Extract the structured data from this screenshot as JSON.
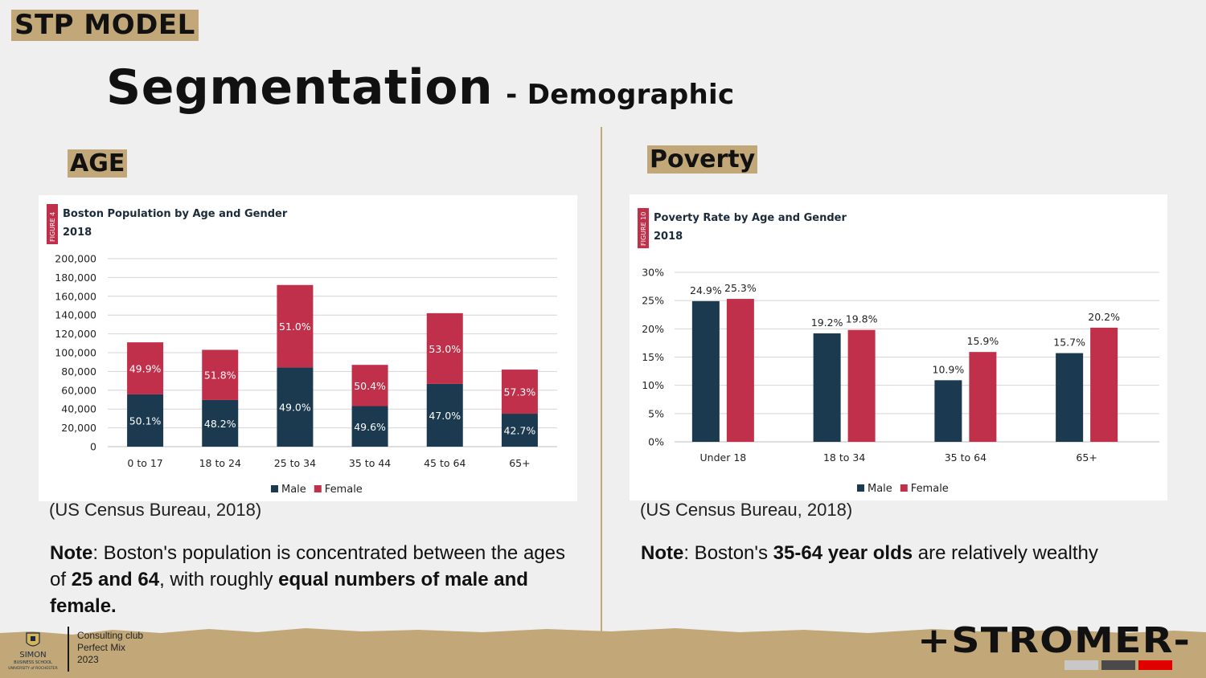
{
  "brand_tag": "STP MODEL",
  "title": {
    "main": "Segmentation",
    "sub": "- Demographic"
  },
  "sections": {
    "age_tag": "AGE",
    "poverty_tag": "Poverty"
  },
  "colors": {
    "male": "#1b3a4f",
    "female": "#c1304a",
    "tag_bg": "#c2a878",
    "grid": "#d4d4d4"
  },
  "chart_data": [
    {
      "type": "bar",
      "stacked": true,
      "figure_label": "FIGURE 4",
      "title": "Boston Population by Age and Gender",
      "subtitle": "2018",
      "categories": [
        "0 to 17",
        "18 to 24",
        "25 to 34",
        "35 to 44",
        "45 to 64",
        "65+"
      ],
      "totals": [
        111000,
        103000,
        172000,
        87000,
        142000,
        82000
      ],
      "series": [
        {
          "name": "Male",
          "labels": [
            "50.1%",
            "48.2%",
            "49.0%",
            "49.6%",
            "47.0%",
            "42.7%"
          ],
          "share": [
            50.1,
            48.2,
            49.0,
            49.6,
            47.0,
            42.7
          ]
        },
        {
          "name": "Female",
          "labels": [
            "49.9%",
            "51.8%",
            "51.0%",
            "50.4%",
            "53.0%",
            "57.3%"
          ],
          "share": [
            49.9,
            51.8,
            51.0,
            50.4,
            53.0,
            57.3
          ]
        }
      ],
      "ylim": [
        0,
        200000
      ],
      "yticks": [
        0,
        20000,
        40000,
        60000,
        80000,
        100000,
        120000,
        140000,
        160000,
        180000,
        200000
      ],
      "ytick_labels": [
        "0",
        "20,000",
        "40,000",
        "60,000",
        "80,000",
        "100,000",
        "120,000",
        "140,000",
        "160,000",
        "180,000",
        "200,000"
      ],
      "grid": true,
      "legend": "bottom"
    },
    {
      "type": "bar",
      "stacked": false,
      "figure_label": "FIGURE 10",
      "title": "Poverty Rate by Age and Gender",
      "subtitle": "2018",
      "categories": [
        "Under 18",
        "18 to 34",
        "35 to 64",
        "65+"
      ],
      "series": [
        {
          "name": "Male",
          "values": [
            24.9,
            19.2,
            10.9,
            15.7
          ],
          "labels": [
            "24.9%",
            "19.2%",
            "10.9%",
            "15.7%"
          ]
        },
        {
          "name": "Female",
          "values": [
            25.3,
            19.8,
            15.9,
            20.2
          ],
          "labels": [
            "25.3%",
            "19.8%",
            "15.9%",
            "20.2%"
          ]
        }
      ],
      "ylim": [
        0,
        30
      ],
      "yticks": [
        0,
        5,
        10,
        15,
        20,
        25,
        30
      ],
      "ytick_labels": [
        "0%",
        "5%",
        "10%",
        "15%",
        "20%",
        "25%",
        "30%"
      ],
      "grid": true,
      "legend": "bottom"
    }
  ],
  "sources": {
    "left": "(US Census Bureau, 2018)",
    "right": "(US Census Bureau, 2018)"
  },
  "notes": {
    "left": {
      "label": "Note",
      "t1": ": Boston's population is concentrated between the ages of ",
      "b1": "25 and 64",
      "t2": ", with roughly ",
      "b2": "equal numbers of male and female."
    },
    "right": {
      "label": "Note",
      "t1": ": Boston's ",
      "b1": "35-64 year olds",
      "t2": " are relatively wealthy"
    }
  },
  "footer": {
    "logo_text": [
      "SIMON",
      "BUSINESS SCHOOL",
      "UNIVERSITY of ROCHESTER"
    ],
    "lines": [
      "Consulting club",
      "Perfect Mix",
      "2023"
    ],
    "logo_right": "+STROMER-"
  }
}
